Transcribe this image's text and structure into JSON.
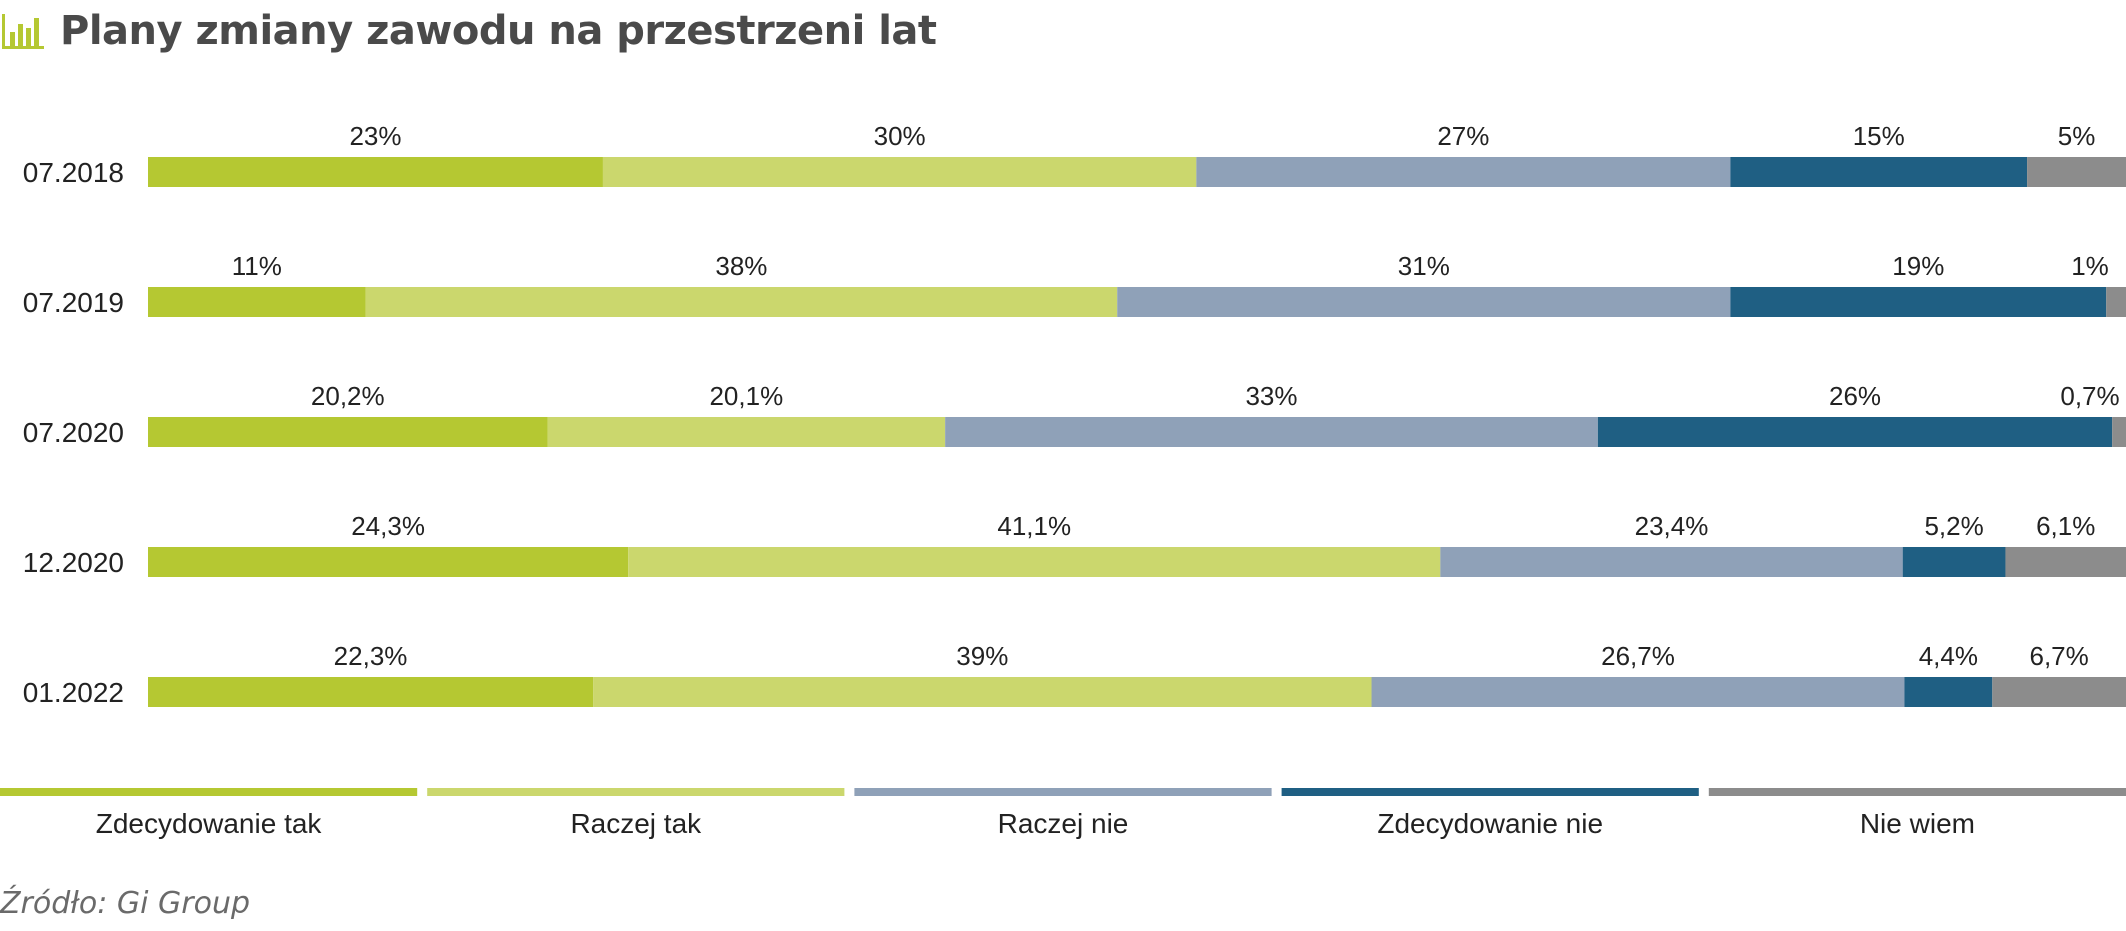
{
  "title": "Plany zmiany zawodu na przestrzeni lat",
  "title_icon": "bar-chart-icon",
  "source": "Źródło: Gi Group",
  "colors": {
    "accent": "#b5c832",
    "series": [
      "#b5c832",
      "#cbd76d",
      "#8fa1b8",
      "#1f5f83",
      "#8c8c8c"
    ]
  },
  "chart_data": {
    "type": "bar",
    "orientation": "horizontal",
    "stacked": true,
    "normalized_to_100": true,
    "categories": [
      "07.2018",
      "07.2019",
      "07.2020",
      "12.2020",
      "01.2022"
    ],
    "series": [
      {
        "name": "Zdecydowanie tak",
        "values": [
          23,
          11,
          20.2,
          24.3,
          22.3
        ],
        "labels": [
          "23%",
          "11%",
          "20,2%",
          "24,3%",
          "22,3%"
        ]
      },
      {
        "name": "Raczej tak",
        "values": [
          30,
          38,
          20.1,
          41.1,
          39
        ],
        "labels": [
          "30%",
          "38%",
          "20,1%",
          "41,1%",
          "39%"
        ]
      },
      {
        "name": "Raczej nie",
        "values": [
          27,
          31,
          33,
          23.4,
          26.7
        ],
        "labels": [
          "27%",
          "31%",
          "33%",
          "23,4%",
          "26,7%"
        ]
      },
      {
        "name": "Zdecydowanie nie",
        "values": [
          15,
          19,
          26,
          5.2,
          4.4
        ],
        "labels": [
          "15%",
          "19%",
          "26%",
          "5,2%",
          "4,4%"
        ]
      },
      {
        "name": "Nie wiem",
        "values": [
          5,
          1,
          0.7,
          6.1,
          6.7
        ],
        "labels": [
          "5%",
          "1%",
          "0,7%",
          "6,1%",
          "6,7%"
        ]
      }
    ],
    "xlim": [
      0,
      100
    ],
    "grid": false,
    "legend_placement": "bottom"
  }
}
